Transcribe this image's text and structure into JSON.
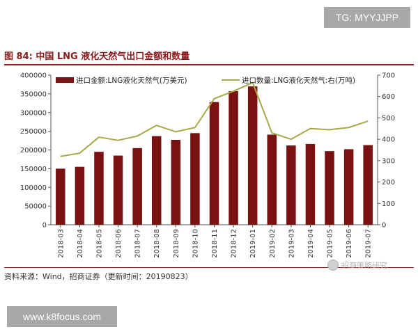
{
  "watermarks": {
    "top": "TG: MYYJJPP",
    "bottom": "www.k8focus.com"
  },
  "figure": {
    "title": "图 84: 中国 LNG 液化天然气出口金额和数量",
    "source": "资料来源：Wind，招商证券（更新时间：20190823）",
    "logo_text": "招商策略研究"
  },
  "colors": {
    "bar": "#7a1212",
    "line": "#a8a848",
    "title": "#8b1a1a"
  },
  "chart_data": {
    "type": "bar",
    "title": "",
    "categories": [
      "2018-03",
      "2018-04",
      "2018-05",
      "2018-06",
      "2018-07",
      "2018-08",
      "2018-09",
      "2018-10",
      "2018-11",
      "2018-12",
      "2019-01",
      "2019-02",
      "2019-03",
      "2019-04",
      "2019-05",
      "2019-06",
      "2019-07"
    ],
    "series": [
      {
        "name": "进口金额:LNG液化天然气(万美元)",
        "type": "bar",
        "axis": "left",
        "values": [
          150000,
          155000,
          195000,
          185000,
          205000,
          237000,
          227000,
          245000,
          328000,
          357000,
          370000,
          241000,
          212000,
          216000,
          197000,
          202000,
          213000
        ]
      },
      {
        "name": "进口数量:LNG液化天然气:右(万吨)",
        "type": "line",
        "axis": "right",
        "values": [
          320,
          335,
          410,
          395,
          415,
          465,
          435,
          455,
          590,
          625,
          665,
          430,
          400,
          450,
          445,
          455,
          485
        ]
      }
    ],
    "y_left": {
      "min": 0,
      "max": 400000,
      "ticks": [
        "0",
        "50000",
        "100000",
        "150000",
        "200000",
        "250000",
        "300000",
        "350000",
        "400000"
      ]
    },
    "y_right": {
      "min": 0,
      "max": 700,
      "ticks": [
        "0",
        "100",
        "200",
        "300",
        "400",
        "500",
        "600",
        "700"
      ]
    },
    "legend": "top",
    "grid": false
  }
}
